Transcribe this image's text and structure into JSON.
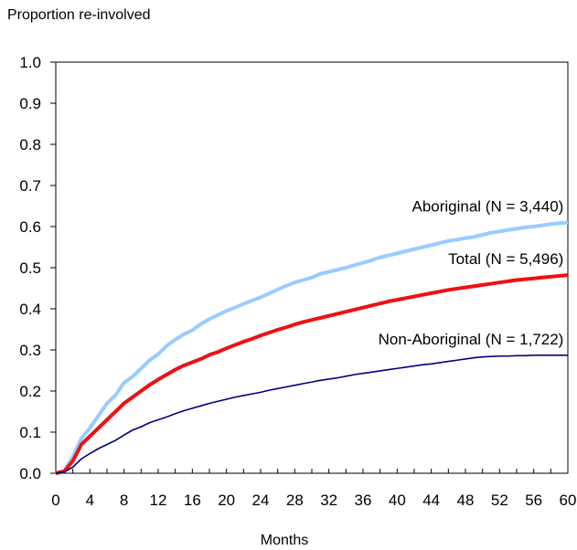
{
  "chart_data": {
    "type": "line",
    "title": "",
    "ylabel": "Proportion re-involved",
    "xlabel": "Months",
    "xlim": [
      0,
      60
    ],
    "ylim": [
      0.0,
      1.0
    ],
    "x_ticks": [
      0,
      4,
      8,
      12,
      16,
      20,
      24,
      28,
      32,
      36,
      40,
      44,
      48,
      52,
      56,
      60
    ],
    "x_tick_labels": [
      "0",
      "4",
      "8",
      "12",
      "16",
      "20",
      "24",
      "28",
      "32",
      "36",
      "40",
      "44",
      "48",
      "52",
      "56",
      "60"
    ],
    "y_ticks": [
      0.0,
      0.1,
      0.2,
      0.3,
      0.4,
      0.5,
      0.6,
      0.7,
      0.8,
      0.9,
      1.0
    ],
    "y_tick_labels": [
      "0.0",
      "0.1",
      "0.2",
      "0.3",
      "0.4",
      "0.5",
      "0.6",
      "0.7",
      "0.8",
      "0.9",
      "1.0"
    ],
    "grid": false,
    "legend": "none (series labelled directly on chart)",
    "x": [
      0,
      1,
      2,
      3,
      4,
      5,
      6,
      7,
      8,
      9,
      10,
      11,
      12,
      13,
      14,
      15,
      16,
      17,
      18,
      19,
      20,
      21,
      22,
      23,
      24,
      25,
      26,
      27,
      28,
      29,
      30,
      31,
      32,
      33,
      34,
      35,
      36,
      37,
      38,
      39,
      40,
      41,
      42,
      43,
      44,
      45,
      46,
      47,
      48,
      49,
      50,
      51,
      52,
      53,
      54,
      55,
      56,
      57,
      58,
      59,
      60
    ],
    "series": [
      {
        "name": "Aboriginal (N = 3,440)",
        "color": "#99ccff",
        "values": [
          0,
          0.005,
          0.04,
          0.085,
          0.11,
          0.14,
          0.17,
          0.19,
          0.22,
          0.235,
          0.255,
          0.275,
          0.29,
          0.31,
          0.325,
          0.338,
          0.348,
          0.363,
          0.375,
          0.385,
          0.395,
          0.403,
          0.412,
          0.42,
          0.428,
          0.437,
          0.447,
          0.456,
          0.464,
          0.47,
          0.476,
          0.485,
          0.49,
          0.495,
          0.5,
          0.506,
          0.512,
          0.518,
          0.525,
          0.53,
          0.535,
          0.54,
          0.545,
          0.55,
          0.555,
          0.56,
          0.565,
          0.568,
          0.572,
          0.575,
          0.58,
          0.585,
          0.588,
          0.592,
          0.595,
          0.598,
          0.6,
          0.603,
          0.606,
          0.608,
          0.61
        ]
      },
      {
        "name": "Total (N = 5,496)",
        "color": "#ee1111",
        "values": [
          0,
          0.005,
          0.03,
          0.07,
          0.09,
          0.11,
          0.13,
          0.15,
          0.17,
          0.185,
          0.2,
          0.215,
          0.228,
          0.24,
          0.252,
          0.262,
          0.27,
          0.278,
          0.288,
          0.295,
          0.304,
          0.312,
          0.32,
          0.327,
          0.335,
          0.342,
          0.349,
          0.355,
          0.362,
          0.368,
          0.373,
          0.378,
          0.383,
          0.388,
          0.393,
          0.398,
          0.403,
          0.408,
          0.413,
          0.418,
          0.422,
          0.426,
          0.43,
          0.434,
          0.438,
          0.442,
          0.446,
          0.449,
          0.452,
          0.455,
          0.458,
          0.461,
          0.464,
          0.467,
          0.47,
          0.472,
          0.474,
          0.476,
          0.478,
          0.48,
          0.482
        ]
      },
      {
        "name": "Non-Aboriginal (N = 1,722)",
        "color": "#000080",
        "values": [
          0,
          0.003,
          0.015,
          0.035,
          0.048,
          0.06,
          0.07,
          0.08,
          0.093,
          0.105,
          0.113,
          0.123,
          0.13,
          0.137,
          0.145,
          0.152,
          0.158,
          0.164,
          0.17,
          0.175,
          0.18,
          0.185,
          0.189,
          0.193,
          0.197,
          0.202,
          0.206,
          0.21,
          0.214,
          0.218,
          0.222,
          0.226,
          0.229,
          0.232,
          0.236,
          0.24,
          0.243,
          0.246,
          0.249,
          0.252,
          0.255,
          0.258,
          0.261,
          0.264,
          0.266,
          0.269,
          0.272,
          0.275,
          0.278,
          0.281,
          0.283,
          0.284,
          0.285,
          0.285,
          0.286,
          0.286,
          0.287,
          0.287,
          0.287,
          0.287,
          0.287
        ]
      }
    ]
  }
}
